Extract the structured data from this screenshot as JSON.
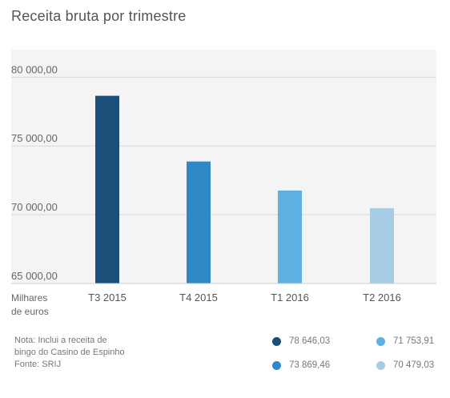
{
  "chart_data": {
    "type": "bar",
    "title": "Receita bruta por trimestre",
    "unit_label": [
      "Milhares",
      "de euros"
    ],
    "categories": [
      "T3 2015",
      "T4 2015",
      "T1 2016",
      "T2 2016"
    ],
    "values": [
      78646.03,
      73869.46,
      71753.91,
      70479.03
    ],
    "value_labels": [
      "78 646,03",
      "73 869,46",
      "71 753,91",
      "70 479,03"
    ],
    "colors": [
      "#1b4f7a",
      "#2e89c5",
      "#5db0e0",
      "#a6cce6"
    ],
    "ylim": [
      65000,
      82000
    ],
    "yticks": [
      65000,
      70000,
      75000,
      80000
    ],
    "ytick_labels": [
      "65 000,00",
      "70 000,00",
      "75 000,00",
      "80 000,00"
    ],
    "grid": true,
    "legend_position": "bottom-right"
  },
  "note": {
    "lines": [
      "Nota: Inclui a receita de",
      "bingo do Casino de Espinho",
      "Fonte: SRIJ"
    ]
  }
}
